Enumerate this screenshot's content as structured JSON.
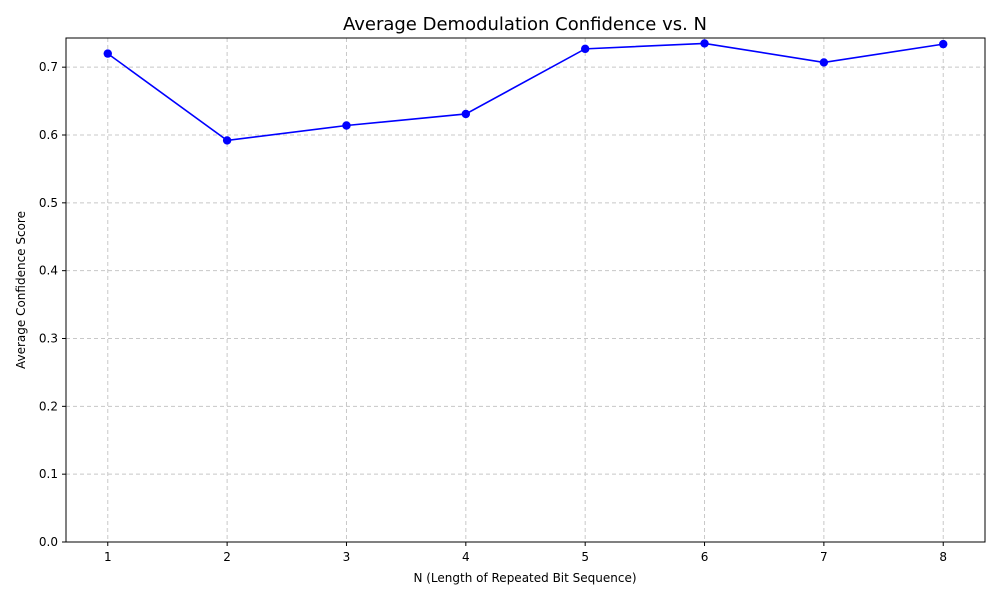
{
  "chart_data": {
    "type": "line",
    "title": "Average Demodulation Confidence vs. N",
    "xlabel": "N (Length of Repeated Bit Sequence)",
    "ylabel": "Average Confidence Score",
    "x": [
      1,
      2,
      3,
      4,
      5,
      6,
      7,
      8
    ],
    "series": [
      {
        "values": [
          0.72,
          0.592,
          0.614,
          0.631,
          0.727,
          0.735,
          0.707,
          0.734
        ]
      }
    ],
    "xlim": [
      0.65,
      8.35
    ],
    "ylim": [
      0.0,
      0.743
    ],
    "xticks": [
      "1",
      "2",
      "3",
      "4",
      "5",
      "6",
      "7",
      "8"
    ],
    "yticks": [
      "0.0",
      "0.1",
      "0.2",
      "0.3",
      "0.4",
      "0.5",
      "0.6",
      "0.7"
    ],
    "grid": true,
    "line_color": "#0000ff",
    "marker": "circle",
    "grid_color": "#c8c8c8"
  }
}
